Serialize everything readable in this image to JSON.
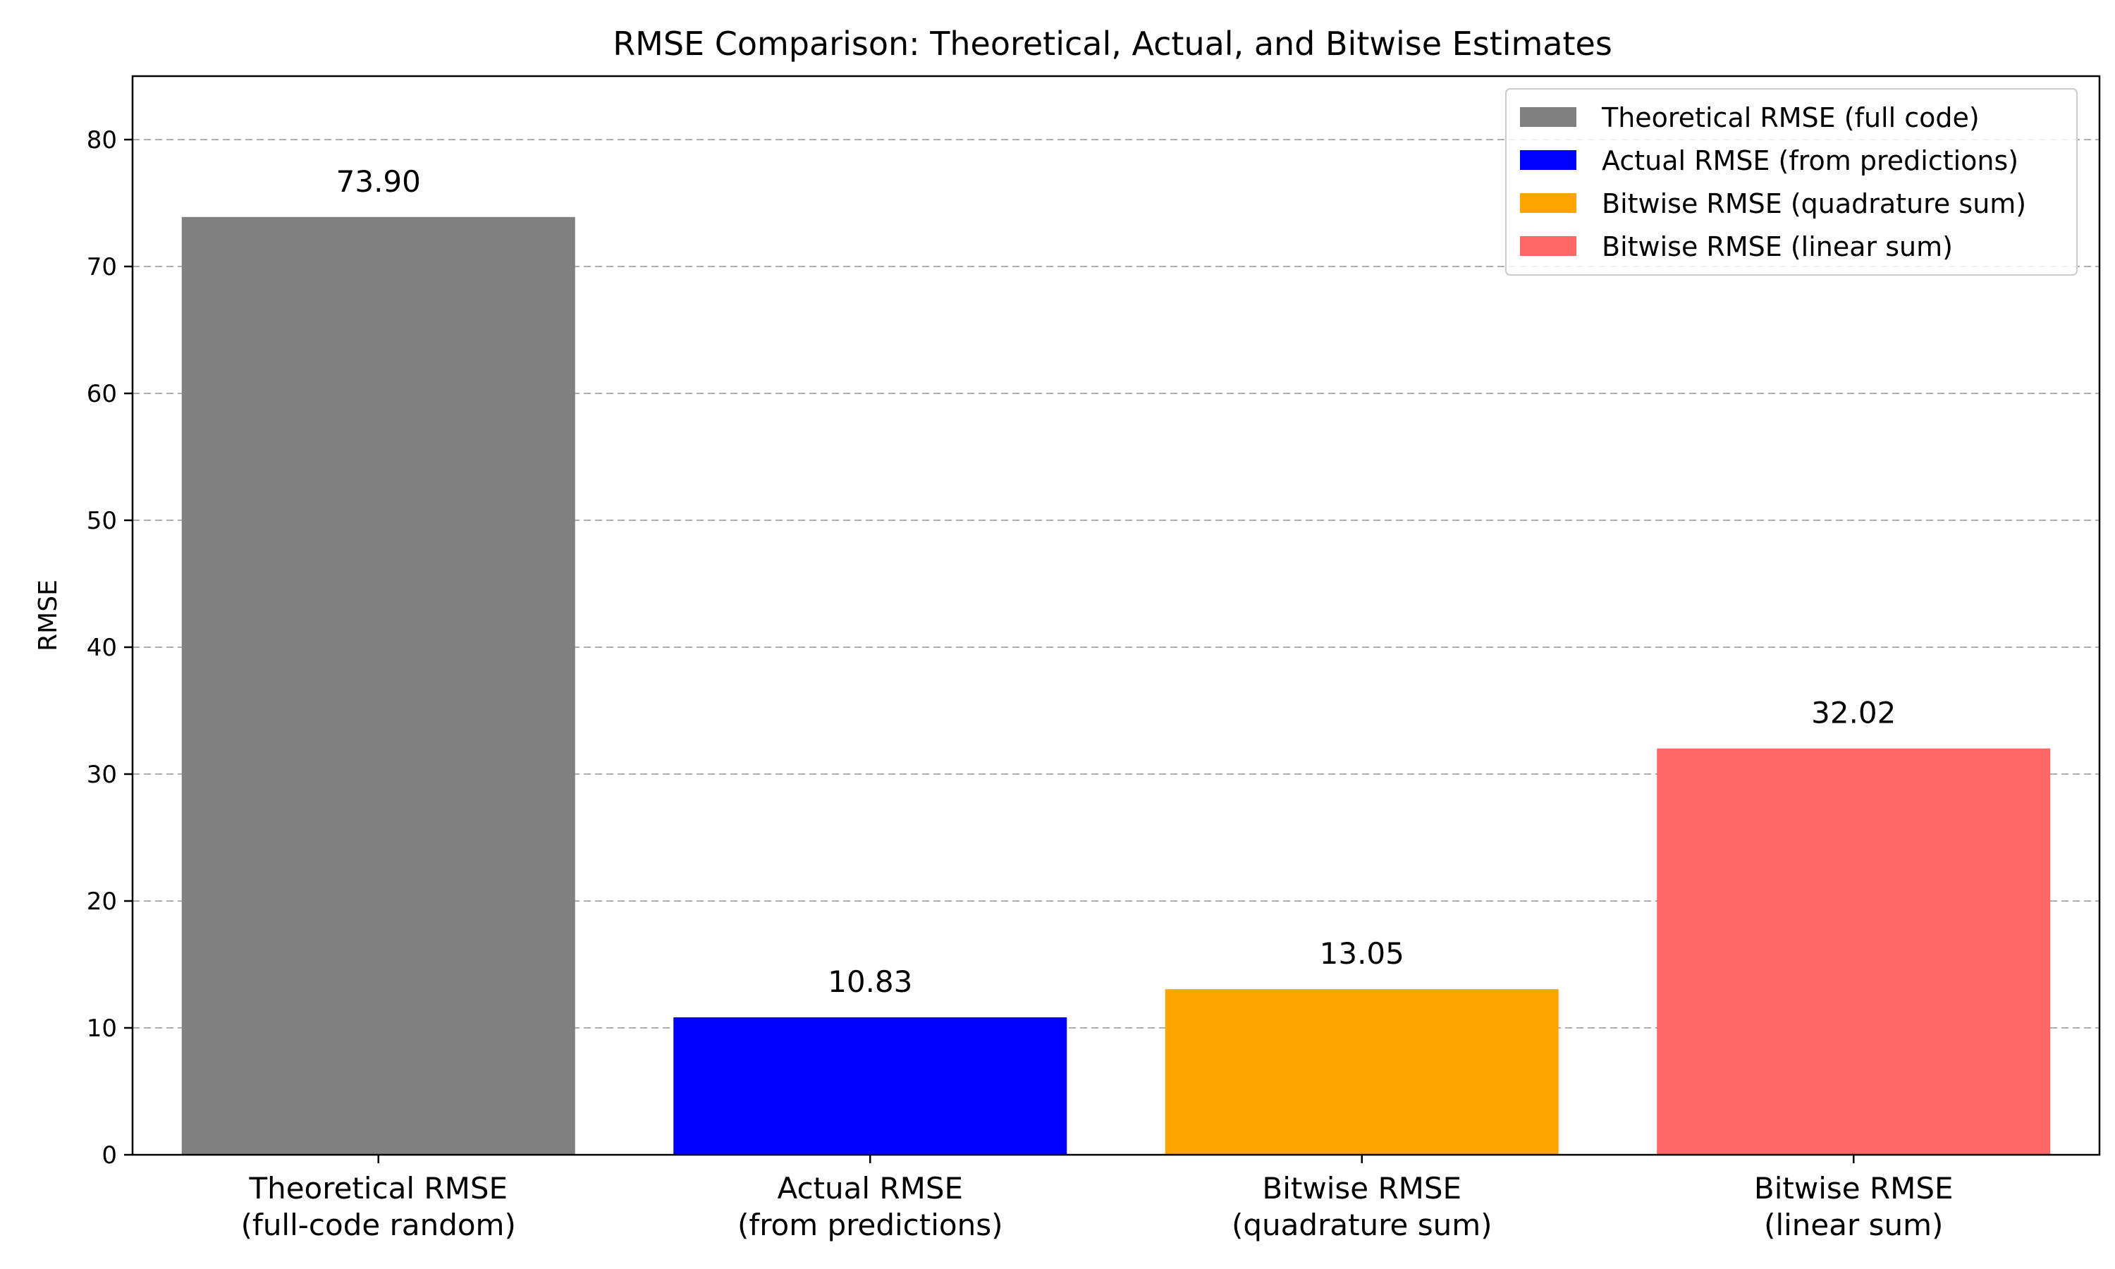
{
  "chart_data": {
    "type": "bar",
    "title": "RMSE Comparison: Theoretical, Actual, and Bitwise Estimates",
    "xlabel": "",
    "ylabel": "RMSE",
    "ylim": [
      0,
      85
    ],
    "yticks": [
      0,
      10,
      20,
      30,
      40,
      50,
      60,
      70,
      80
    ],
    "grid": "y-dashed",
    "legend_position": "top-right",
    "categories": [
      [
        "Theoretical RMSE",
        "(full-code random)"
      ],
      [
        "Actual RMSE",
        "(from predictions)"
      ],
      [
        "Bitwise RMSE",
        "(quadrature sum)"
      ],
      [
        "Bitwise RMSE",
        "(linear sum)"
      ]
    ],
    "values": [
      73.9,
      10.83,
      13.05,
      32.02
    ],
    "value_labels": [
      "73.90",
      "10.83",
      "13.05",
      "32.02"
    ],
    "colors": [
      "#808080",
      "#0000ff",
      "#ffa500",
      "#ff6666"
    ],
    "legend": [
      "Theoretical RMSE (full code)",
      "Actual RMSE (from predictions)",
      "Bitwise RMSE (quadrature sum)",
      "Bitwise RMSE (linear sum)"
    ]
  }
}
